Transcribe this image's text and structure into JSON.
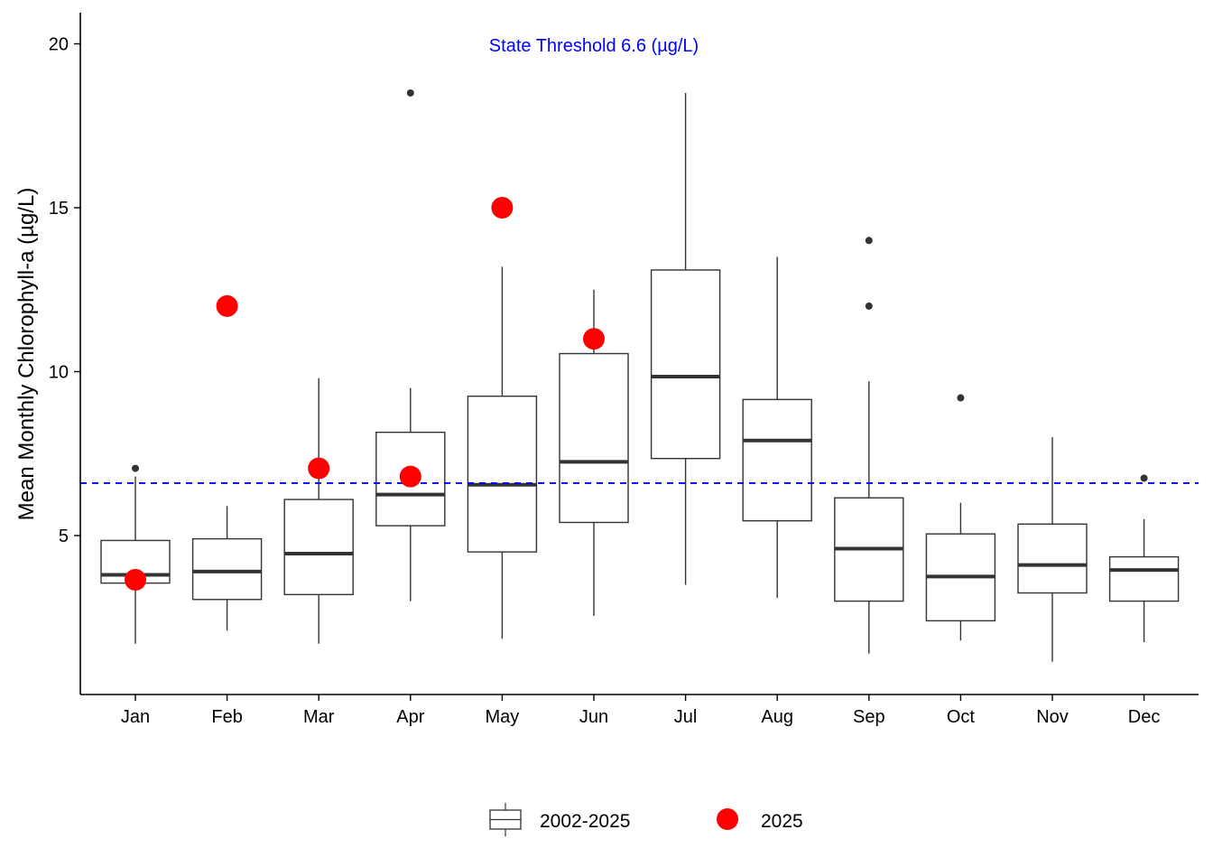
{
  "chart_data": {
    "type": "box",
    "ylabel": "Mean Monthly Chlorophyll-a (µg/L)",
    "xlabel": "",
    "title": "",
    "ylim": [
      0.2,
      21
    ],
    "yticks": [
      5,
      10,
      15,
      20
    ],
    "grid": false,
    "legend_placement": "bottom",
    "categories": [
      "Jan",
      "Feb",
      "Mar",
      "Apr",
      "May",
      "Jun",
      "Jul",
      "Aug",
      "Sep",
      "Oct",
      "Nov",
      "Dec"
    ],
    "threshold": {
      "value": 6.6,
      "label": "State Threshold 6.6 (µg/L)",
      "color": "#0000ff"
    },
    "series": [
      {
        "name": "2002-2025",
        "kind": "boxplot",
        "color": "#333333",
        "boxes": [
          {
            "month": "Jan",
            "whisker_low": 1.7,
            "q1": 3.55,
            "median": 3.8,
            "q3": 4.85,
            "whisker_high": 6.8,
            "outliers": [
              7.05
            ]
          },
          {
            "month": "Feb",
            "whisker_low": 2.1,
            "q1": 3.05,
            "median": 3.9,
            "q3": 4.9,
            "whisker_high": 5.9,
            "outliers": []
          },
          {
            "month": "Mar",
            "whisker_low": 1.7,
            "q1": 3.2,
            "median": 4.45,
            "q3": 6.1,
            "whisker_high": 9.8,
            "outliers": []
          },
          {
            "month": "Apr",
            "whisker_low": 3.0,
            "q1": 5.3,
            "median": 6.25,
            "q3": 8.15,
            "whisker_high": 9.5,
            "outliers": [
              18.5
            ]
          },
          {
            "month": "May",
            "whisker_low": 1.85,
            "q1": 4.5,
            "median": 6.55,
            "q3": 9.25,
            "whisker_high": 13.2,
            "outliers": []
          },
          {
            "month": "Jun",
            "whisker_low": 2.55,
            "q1": 5.4,
            "median": 7.25,
            "q3": 10.55,
            "whisker_high": 12.5,
            "outliers": []
          },
          {
            "month": "Jul",
            "whisker_low": 3.5,
            "q1": 7.35,
            "median": 9.85,
            "q3": 13.1,
            "whisker_high": 18.5,
            "outliers": []
          },
          {
            "month": "Aug",
            "whisker_low": 3.1,
            "q1": 5.45,
            "median": 7.9,
            "q3": 9.15,
            "whisker_high": 13.5,
            "outliers": []
          },
          {
            "month": "Sep",
            "whisker_low": 1.4,
            "q1": 3.0,
            "median": 4.6,
            "q3": 6.15,
            "whisker_high": 9.7,
            "outliers": [
              12.0,
              14.0
            ]
          },
          {
            "month": "Oct",
            "whisker_low": 1.8,
            "q1": 2.4,
            "median": 3.75,
            "q3": 5.05,
            "whisker_high": 6.0,
            "outliers": [
              9.2
            ]
          },
          {
            "month": "Nov",
            "whisker_low": 1.15,
            "q1": 3.25,
            "median": 4.1,
            "q3": 5.35,
            "whisker_high": 8.0,
            "outliers": []
          },
          {
            "month": "Dec",
            "whisker_low": 1.75,
            "q1": 3.0,
            "median": 3.95,
            "q3": 4.35,
            "whisker_high": 5.5,
            "outliers": [
              6.75
            ]
          }
        ]
      },
      {
        "name": "2025",
        "kind": "points",
        "color": "#ff0000",
        "values": [
          {
            "month": "Jan",
            "y": 3.65
          },
          {
            "month": "Feb",
            "y": 12.0
          },
          {
            "month": "Mar",
            "y": 7.05
          },
          {
            "month": "Apr",
            "y": 6.8
          },
          {
            "month": "May",
            "y": 15.0
          },
          {
            "month": "Jun",
            "y": 11.0
          }
        ]
      }
    ]
  }
}
